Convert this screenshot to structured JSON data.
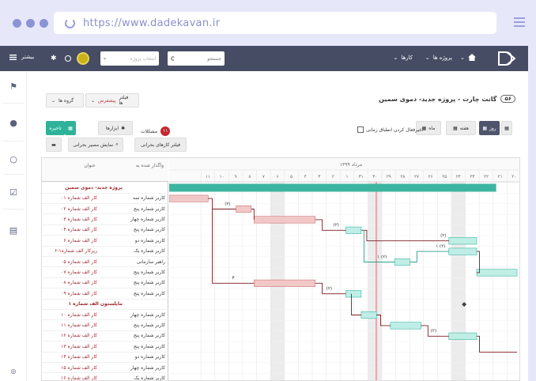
{
  "browser": {
    "url": "https://www.dadekavan.ir"
  },
  "topnav": {
    "menu_projects": "پروژه ها",
    "menu_tasks": "کارها",
    "search_placeholder": "جستجو",
    "project_select_placeholder": "انتخاب پروژه",
    "more_label": "بیشتر"
  },
  "page": {
    "title": "گانت چارت - پروژه جدید- دموی سمین",
    "badge": "۵۶",
    "filter_label": "فیلتر ها",
    "filter_value": "پیشفرض",
    "groups_label": "گروه ها"
  },
  "toolbar": {
    "day": "روز",
    "week": "هفته",
    "month": "ماه",
    "ignore_time_limits": "اغیرفعال کردن انطباق زمانی",
    "issues_label": "مشکلات",
    "issues_count": "۱۱",
    "tools": "ابزارها",
    "future": "تاخیره",
    "show_critical_path": "نمایش مسیر بحرانی",
    "filter_critical": "فیلتر کارهای بحرانی"
  },
  "grid": {
    "header_title": "عنوان",
    "header_assigned": "واگذار شده به",
    "rows": [
      {
        "task": "پروژه جدید- دموی سمین",
        "assignee": "",
        "type": "project"
      },
      {
        "task": "کار الف شماره ۰۱",
        "assignee": "کاربر شماره سه",
        "type": "task"
      },
      {
        "task": "کار الف شماره ۰۲",
        "assignee": "کاربر شماره پنج",
        "type": "task"
      },
      {
        "task": "کار الف شماره ۰۳",
        "assignee": "کاربر شماره چهار",
        "type": "task"
      },
      {
        "task": "کار الف شماره ۰۴",
        "assignee": "کاربر شماره پنج",
        "type": "task"
      },
      {
        "task": "کار الف شماره ۶",
        "assignee": "کاربر شماره دو",
        "type": "task"
      },
      {
        "task": "زیرکار الف شماره۱-۶",
        "assignee": "کاربر شماره یک",
        "type": "task"
      },
      {
        "task": "کار الف شماره ۰۵",
        "assignee": "راهبر سازمانی",
        "type": "task"
      },
      {
        "task": "کار الف شماره ۰۷",
        "assignee": "کاربر شماره پنج",
        "type": "task"
      },
      {
        "task": "کار الف شماره ۰۸",
        "assignee": "کاربر شماره پنج",
        "type": "task"
      },
      {
        "task": "کار الف شماره ۰۹",
        "assignee": "کاربر شماره پنج",
        "type": "task"
      },
      {
        "task": "مایلستون الف شماره ۱",
        "assignee": "",
        "type": "milestone"
      },
      {
        "task": "کار الف شماره ۱۰",
        "assignee": "کاربر شماره چهار",
        "type": "task"
      },
      {
        "task": "کار الف شماره ۱۱",
        "assignee": "کاربر شماره پنج",
        "type": "task"
      },
      {
        "task": "کار الف شماره ۱۲",
        "assignee": "کاربر شماره پنج",
        "type": "task"
      },
      {
        "task": "کار الف شماره ۱۳",
        "assignee": "کاربر شماره پنج",
        "type": "task"
      },
      {
        "task": "کار الف شماره ۱۴",
        "assignee": "کاربر شماره دو",
        "type": "task"
      },
      {
        "task": "کار الف شماره ۱۵",
        "assignee": "کاربر شماره چهار",
        "type": "task"
      },
      {
        "task": "کار الف شماره ۱۶",
        "assignee": "کاربر شماره یک",
        "type": "task"
      }
    ]
  },
  "timeline": {
    "month_label": "مرداد ۱۳۹۹",
    "days": [
      "۲۰",
      "۲۱",
      "۲۲",
      "۲۳",
      "۲۴",
      "۲۵",
      "۲۶",
      "۲۷",
      "۲۸",
      "۲۹",
      "۳۰",
      "۳۱",
      "۱",
      "۲",
      "۳",
      "۴",
      "۵",
      "۶",
      "۷",
      "۸",
      "۹",
      "۱۰",
      "۱۱"
    ],
    "today_index": 10.4,
    "weekend_indices": [
      4,
      10,
      17
    ],
    "bars": [
      {
        "row": 0,
        "start": 0,
        "end": 23.5,
        "color": "#3cb5a0",
        "kind": "summary"
      },
      {
        "row": 1,
        "start": 0,
        "end": 2.8,
        "color": "#f2c7c7",
        "kind": "task"
      },
      {
        "row": 2,
        "start": 4.8,
        "end": 5.9,
        "color": "#f2c7c7",
        "kind": "task"
      },
      {
        "row": 3,
        "start": 6.1,
        "end": 10.5,
        "color": "#f2c7c7",
        "kind": "task"
      },
      {
        "row": 4,
        "start": 12.7,
        "end": 13.8,
        "color": "#bfeee6",
        "kind": "task"
      },
      {
        "row": 5,
        "start": 20.1,
        "end": 22.1,
        "color": "#bfeee6",
        "kind": "task"
      },
      {
        "row": 6,
        "start": 20.1,
        "end": 22.1,
        "color": "#bfeee6",
        "kind": "task"
      },
      {
        "row": 7,
        "start": 16.2,
        "end": 17.3,
        "color": "#bfeee6",
        "kind": "task"
      },
      {
        "row": 8,
        "start": 22.1,
        "end": 25,
        "color": "#bfeee6",
        "kind": "task"
      },
      {
        "row": 9,
        "start": 6.1,
        "end": 10.5,
        "color": "#f2c7c7",
        "kind": "task"
      },
      {
        "row": 10,
        "start": 12.7,
        "end": 13.8,
        "color": "#bfeee6",
        "kind": "task"
      },
      {
        "row": 12,
        "start": 13.8,
        "end": 14.9,
        "color": "#bfeee6",
        "kind": "task"
      },
      {
        "row": 13,
        "start": 15.9,
        "end": 18.1,
        "color": "#bfeee6",
        "kind": "task"
      },
      {
        "row": 14,
        "start": 20.1,
        "end": 22.1,
        "color": "#bfeee6",
        "kind": "task"
      }
    ],
    "labels": [
      {
        "row": 2,
        "col": 4.2,
        "text": "(۲)"
      },
      {
        "row": 4,
        "col": 12.0,
        "text": "(۲)"
      },
      {
        "row": 5,
        "col": 19.7,
        "text": "(۲)"
      },
      {
        "row": 7,
        "col": 15.3,
        "text": "۱ (۲)"
      },
      {
        "row": 6,
        "col": 19.5,
        "text": "۱ (۲)"
      },
      {
        "row": 9,
        "col": 4.6,
        "text": "۳"
      },
      {
        "row": 10,
        "col": 11.5,
        "text": "(۲)"
      },
      {
        "row": 14,
        "col": 19.0,
        "text": "(۲)"
      }
    ]
  }
}
